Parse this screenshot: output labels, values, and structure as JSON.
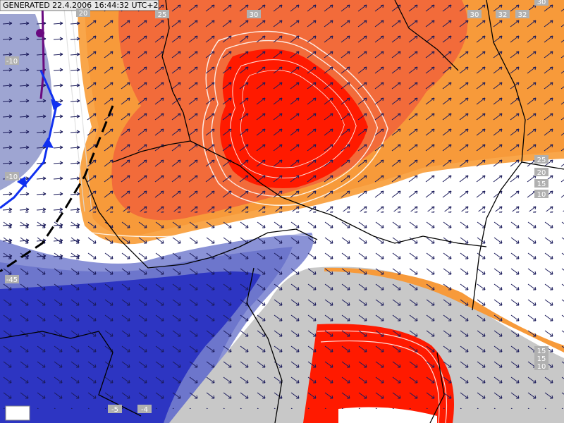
{
  "header": {
    "title": "GENERATED 22.4.2006 16:44:32 UTC+2"
  },
  "contour_labels": [
    "20",
    "25",
    "30",
    "30",
    "32",
    "32",
    "30",
    "-10",
    "-10",
    "-45",
    "25",
    "20",
    "15",
    "10",
    "15",
    "15",
    "10",
    "-5",
    "-4"
  ]
}
